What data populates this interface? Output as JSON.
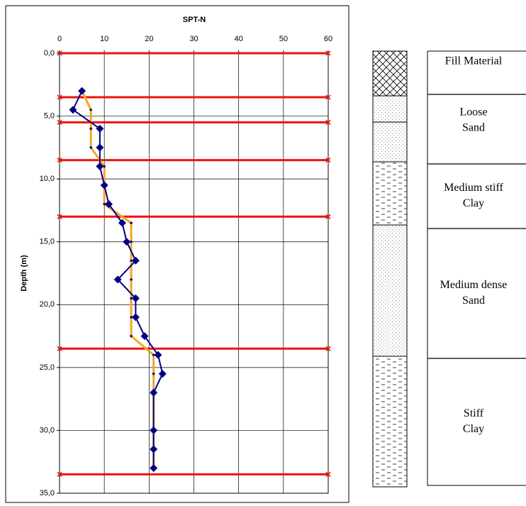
{
  "chart_data": {
    "type": "line",
    "title": "SPT-N",
    "y_label": "Depth (m)",
    "xlim": [
      0,
      60
    ],
    "xticks": [
      0,
      10,
      20,
      30,
      40,
      50,
      60
    ],
    "ylim": [
      0,
      35
    ],
    "yticks": [
      {
        "value": 0,
        "label": "0,0"
      },
      {
        "value": 5,
        "label": "5,0"
      },
      {
        "value": 10,
        "label": "10,0"
      },
      {
        "value": 15,
        "label": "15,0"
      },
      {
        "value": 20,
        "label": "20,0"
      },
      {
        "value": 25,
        "label": "25,0"
      },
      {
        "value": 30,
        "label": "30,0"
      },
      {
        "value": 35,
        "label": "35,0"
      }
    ],
    "y_inverted": true,
    "grid": true,
    "y": [
      3,
      4.5,
      6,
      7.5,
      9,
      10.5,
      12,
      13.5,
      15,
      16.5,
      18,
      19.5,
      21,
      22.5,
      24,
      25.5,
      27,
      30,
      31.5,
      33
    ],
    "series": [
      {
        "color": "#f5a623",
        "marker_color": "#000080",
        "values": [
          5,
          7,
          7,
          7,
          10,
          10,
          10,
          16,
          16,
          16,
          16,
          16,
          16,
          16,
          21,
          21,
          21,
          21,
          21,
          21
        ]
      },
      {
        "color": "#000080",
        "marker_color": "#000080",
        "values": [
          5,
          3,
          9,
          9,
          9,
          10,
          11,
          14,
          15,
          17,
          13,
          17,
          17,
          19,
          22,
          23,
          21,
          21,
          21,
          21
        ]
      }
    ],
    "layer_boundaries": {
      "color": "#ee1111",
      "values": [
        0,
        3.5,
        5.5,
        8.5,
        13,
        23.5,
        33.5
      ]
    },
    "soil_layers": [
      {
        "lines": [
          "Fill Material"
        ]
      },
      {
        "lines": [
          "Loose",
          "Sand"
        ]
      },
      {
        "lines": [
          "Medium stiff",
          "Clay"
        ]
      },
      {
        "lines": [
          "Medium dense",
          "Sand"
        ]
      },
      {
        "lines": [
          "Stiff",
          "Clay"
        ]
      }
    ]
  }
}
